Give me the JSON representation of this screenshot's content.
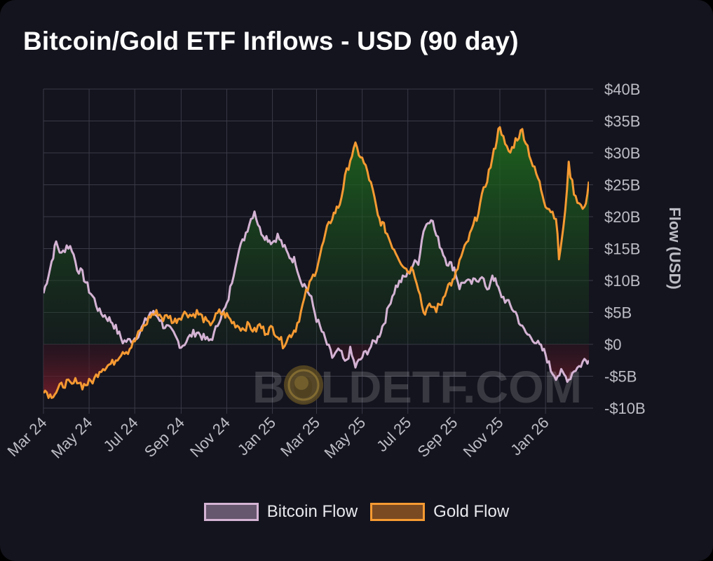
{
  "title": "Bitcoin/Gold ETF Inflows - USD (90 day)",
  "watermark": "BOLDETF.COM",
  "chart_data": {
    "type": "line",
    "title": "Bitcoin/Gold ETF Inflows - USD (90 day)",
    "ylabel": "Flow (USD)",
    "ylim": [
      -10,
      40
    ],
    "y_unit": "billion USD",
    "y_ticks": [
      -10,
      -5,
      0,
      5,
      10,
      15,
      20,
      25,
      30,
      35,
      40
    ],
    "y_tick_labels": [
      "-$10B",
      "-$5B",
      "$0",
      "$5B",
      "$10B",
      "$15B",
      "$20B",
      "$25B",
      "$30B",
      "$35B",
      "$40B"
    ],
    "x_ticks": [
      "2024-03-01",
      "2024-05-01",
      "2024-07-01",
      "2024-09-01",
      "2024-11-01",
      "2025-01-01",
      "2025-03-01",
      "2025-05-01",
      "2025-07-01",
      "2025-09-01",
      "2025-11-01",
      "2026-01-01"
    ],
    "x_tick_labels": [
      "Mar 24",
      "May 24",
      "Jul 24",
      "Sep 24",
      "Nov 24",
      "Jan 25",
      "Mar 25",
      "May 25",
      "Jul 25",
      "Sep 25",
      "Nov 25",
      "Jan 26"
    ],
    "x_range": [
      "2024-03-01",
      "2026-02-28"
    ],
    "grid": true,
    "legend_position": "bottom-center",
    "series": [
      {
        "name": "Bitcoin Flow",
        "color": "#d4b3d4",
        "fill": "#66566e",
        "points": [
          [
            "2024-03-01",
            8
          ],
          [
            "2024-03-10",
            12
          ],
          [
            "2024-03-18",
            16
          ],
          [
            "2024-03-25",
            14
          ],
          [
            "2024-04-01",
            15.5
          ],
          [
            "2024-04-08",
            15
          ],
          [
            "2024-04-15",
            12
          ],
          [
            "2024-04-22",
            11
          ],
          [
            "2024-05-01",
            8.5
          ],
          [
            "2024-05-08",
            7
          ],
          [
            "2024-05-15",
            5
          ],
          [
            "2024-05-22",
            4.5
          ],
          [
            "2024-06-01",
            3.5
          ],
          [
            "2024-06-08",
            2
          ],
          [
            "2024-06-15",
            0.5
          ],
          [
            "2024-06-22",
            0.5
          ],
          [
            "2024-07-01",
            1
          ],
          [
            "2024-07-08",
            2
          ],
          [
            "2024-07-15",
            3.5
          ],
          [
            "2024-07-22",
            5
          ],
          [
            "2024-08-01",
            4.5
          ],
          [
            "2024-08-08",
            3
          ],
          [
            "2024-08-15",
            2.5
          ],
          [
            "2024-08-22",
            1.5
          ],
          [
            "2024-09-01",
            -0.3
          ],
          [
            "2024-09-08",
            0.5
          ],
          [
            "2024-09-15",
            1.5
          ],
          [
            "2024-09-22",
            2
          ],
          [
            "2024-10-01",
            1
          ],
          [
            "2024-10-08",
            0.5
          ],
          [
            "2024-10-15",
            1.5
          ],
          [
            "2024-10-22",
            4
          ],
          [
            "2024-11-01",
            6
          ],
          [
            "2024-11-08",
            10
          ],
          [
            "2024-11-15",
            14
          ],
          [
            "2024-11-22",
            16
          ],
          [
            "2024-12-01",
            19
          ],
          [
            "2024-12-08",
            21
          ],
          [
            "2024-12-15",
            18
          ],
          [
            "2024-12-22",
            17
          ],
          [
            "2025-01-01",
            16
          ],
          [
            "2025-01-08",
            17
          ],
          [
            "2025-01-15",
            15.5
          ],
          [
            "2025-01-22",
            14
          ],
          [
            "2025-02-01",
            13
          ],
          [
            "2025-02-08",
            10
          ],
          [
            "2025-02-15",
            9
          ],
          [
            "2025-02-22",
            7
          ],
          [
            "2025-03-01",
            4
          ],
          [
            "2025-03-08",
            2
          ],
          [
            "2025-03-15",
            0
          ],
          [
            "2025-03-22",
            -2
          ],
          [
            "2025-04-01",
            -1
          ],
          [
            "2025-04-08",
            -3
          ],
          [
            "2025-04-15",
            -1
          ],
          [
            "2025-04-22",
            -3.5
          ],
          [
            "2025-05-01",
            -2
          ],
          [
            "2025-05-08",
            -1
          ],
          [
            "2025-05-15",
            0
          ],
          [
            "2025-05-22",
            1
          ],
          [
            "2025-06-01",
            4
          ],
          [
            "2025-06-08",
            7
          ],
          [
            "2025-06-15",
            9
          ],
          [
            "2025-06-22",
            10
          ],
          [
            "2025-07-01",
            11
          ],
          [
            "2025-07-08",
            12.5
          ],
          [
            "2025-07-15",
            13
          ],
          [
            "2025-07-22",
            18
          ],
          [
            "2025-08-01",
            20
          ],
          [
            "2025-08-08",
            17
          ],
          [
            "2025-08-15",
            15
          ],
          [
            "2025-08-22",
            13
          ],
          [
            "2025-09-01",
            12
          ],
          [
            "2025-09-08",
            9
          ],
          [
            "2025-09-15",
            10
          ],
          [
            "2025-09-22",
            9.5
          ],
          [
            "2025-10-01",
            10
          ],
          [
            "2025-10-08",
            11
          ],
          [
            "2025-10-15",
            8
          ],
          [
            "2025-10-22",
            11
          ],
          [
            "2025-11-01",
            8
          ],
          [
            "2025-11-08",
            7
          ],
          [
            "2025-11-15",
            6
          ],
          [
            "2025-11-22",
            5
          ],
          [
            "2025-12-01",
            2.5
          ],
          [
            "2025-12-08",
            1.5
          ],
          [
            "2025-12-15",
            1
          ],
          [
            "2025-12-22",
            0
          ],
          [
            "2026-01-01",
            -1.5
          ],
          [
            "2026-01-08",
            -4
          ],
          [
            "2026-01-15",
            -5
          ],
          [
            "2026-01-22",
            -4.5
          ],
          [
            "2026-02-01",
            -5.5
          ],
          [
            "2026-02-08",
            -4
          ],
          [
            "2026-02-15",
            -3.5
          ],
          [
            "2026-02-22",
            -2.5
          ],
          [
            "2026-02-28",
            -2.5
          ]
        ]
      },
      {
        "name": "Gold Flow",
        "color": "#f59a32",
        "fill": "#7a4a22",
        "points": [
          [
            "2024-03-01",
            -7
          ],
          [
            "2024-03-10",
            -8
          ],
          [
            "2024-03-18",
            -7.5
          ],
          [
            "2024-03-25",
            -6.5
          ],
          [
            "2024-04-01",
            -6
          ],
          [
            "2024-04-08",
            -6.5
          ],
          [
            "2024-04-15",
            -5.5
          ],
          [
            "2024-04-22",
            -6.5
          ],
          [
            "2024-05-01",
            -6
          ],
          [
            "2024-05-08",
            -5.5
          ],
          [
            "2024-05-15",
            -4
          ],
          [
            "2024-05-22",
            -3.5
          ],
          [
            "2024-06-01",
            -3
          ],
          [
            "2024-06-08",
            -2
          ],
          [
            "2024-06-15",
            -1
          ],
          [
            "2024-06-22",
            -1
          ],
          [
            "2024-07-01",
            0.5
          ],
          [
            "2024-07-08",
            2
          ],
          [
            "2024-07-15",
            3
          ],
          [
            "2024-07-22",
            4.5
          ],
          [
            "2024-08-01",
            5
          ],
          [
            "2024-08-08",
            4
          ],
          [
            "2024-08-15",
            4.5
          ],
          [
            "2024-08-22",
            3.5
          ],
          [
            "2024-09-01",
            4.5
          ],
          [
            "2024-09-08",
            5
          ],
          [
            "2024-09-15",
            4.5
          ],
          [
            "2024-09-22",
            5
          ],
          [
            "2024-10-01",
            4
          ],
          [
            "2024-10-08",
            3
          ],
          [
            "2024-10-15",
            4
          ],
          [
            "2024-10-22",
            5
          ],
          [
            "2024-11-01",
            4.5
          ],
          [
            "2024-11-08",
            3.5
          ],
          [
            "2024-11-15",
            3
          ],
          [
            "2024-11-22",
            2.5
          ],
          [
            "2024-12-01",
            3
          ],
          [
            "2024-12-08",
            2
          ],
          [
            "2024-12-15",
            3
          ],
          [
            "2024-12-22",
            2
          ],
          [
            "2025-01-01",
            2.5
          ],
          [
            "2025-01-08",
            1.5
          ],
          [
            "2025-01-15",
            0
          ],
          [
            "2025-01-22",
            1
          ],
          [
            "2025-02-01",
            2.5
          ],
          [
            "2025-02-08",
            5
          ],
          [
            "2025-02-15",
            8
          ],
          [
            "2025-02-22",
            10
          ],
          [
            "2025-03-01",
            12
          ],
          [
            "2025-03-08",
            15
          ],
          [
            "2025-03-15",
            18
          ],
          [
            "2025-03-22",
            20
          ],
          [
            "2025-04-01",
            22
          ],
          [
            "2025-04-08",
            26
          ],
          [
            "2025-04-15",
            29
          ],
          [
            "2025-04-22",
            31
          ],
          [
            "2025-05-01",
            29
          ],
          [
            "2025-05-08",
            27
          ],
          [
            "2025-05-15",
            24
          ],
          [
            "2025-05-22",
            20
          ],
          [
            "2025-06-01",
            18
          ],
          [
            "2025-06-08",
            16
          ],
          [
            "2025-06-15",
            14.5
          ],
          [
            "2025-06-22",
            13
          ],
          [
            "2025-07-01",
            11.5
          ],
          [
            "2025-07-08",
            12
          ],
          [
            "2025-07-15",
            9
          ],
          [
            "2025-07-22",
            5
          ],
          [
            "2025-08-01",
            6
          ],
          [
            "2025-08-08",
            5.5
          ],
          [
            "2025-08-15",
            6.5
          ],
          [
            "2025-08-22",
            9
          ],
          [
            "2025-09-01",
            10
          ],
          [
            "2025-09-08",
            13
          ],
          [
            "2025-09-15",
            15
          ],
          [
            "2025-09-22",
            17
          ],
          [
            "2025-10-01",
            20
          ],
          [
            "2025-10-08",
            23
          ],
          [
            "2025-10-15",
            26
          ],
          [
            "2025-10-22",
            29
          ],
          [
            "2025-11-01",
            34.5
          ],
          [
            "2025-11-08",
            31
          ],
          [
            "2025-11-15",
            30
          ],
          [
            "2025-11-22",
            32
          ],
          [
            "2025-12-01",
            33.5
          ],
          [
            "2025-12-08",
            31
          ],
          [
            "2025-12-15",
            28
          ],
          [
            "2025-12-22",
            26
          ],
          [
            "2026-01-01",
            22
          ],
          [
            "2026-01-08",
            21
          ],
          [
            "2026-01-15",
            20
          ],
          [
            "2026-01-19",
            13.5
          ],
          [
            "2026-01-25",
            18
          ],
          [
            "2026-02-01",
            28
          ],
          [
            "2026-02-08",
            24
          ],
          [
            "2026-02-15",
            22
          ],
          [
            "2026-02-22",
            21
          ],
          [
            "2026-02-28",
            25.5
          ]
        ]
      }
    ]
  },
  "legend": [
    {
      "label": "Bitcoin Flow",
      "border": "#d4b3d4",
      "fill": "#66566e"
    },
    {
      "label": "Gold Flow",
      "border": "#f59a32",
      "fill": "#7a4a22"
    }
  ]
}
